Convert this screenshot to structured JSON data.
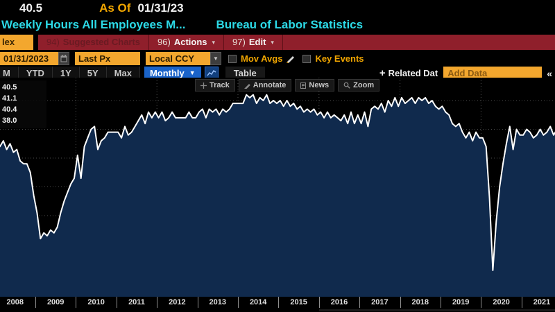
{
  "header": {
    "last_price": "40.5",
    "as_of_label": "As Of",
    "as_of_date": "01/31/23",
    "title": "Weekly Hours All Employees M...",
    "source": "Bureau of Labor Statistics"
  },
  "menubar": {
    "ticker_tab": "lex",
    "items": [
      {
        "num": "94)",
        "label": "Suggested Charts",
        "arrow": ""
      },
      {
        "num": "96)",
        "label": "Actions",
        "arrow": "▾"
      },
      {
        "num": "97)",
        "label": "Edit",
        "arrow": "▾"
      }
    ]
  },
  "toolbar": {
    "date_value": "01/31/2023",
    "price_field": "Last Px",
    "currency_field": "Local CCY",
    "dropdown_glyph": "▼",
    "mov_avgs_label": "Mov Avgs",
    "key_events_label": "Key Events",
    "ranges": [
      "M",
      "YTD",
      "1Y",
      "5Y",
      "Max"
    ],
    "period_selected": "Monthly",
    "period_arrow": "▼",
    "table_label": "Table",
    "related_plus": "+",
    "related_data_label": "Related Dat",
    "add_data_placeholder": "Add Data",
    "collapse_glyph": "«"
  },
  "chart_toolbar": {
    "track": "Track",
    "annotate": "Annotate",
    "news": "News",
    "zoom": "Zoom"
  },
  "markers": {
    "last": "40.5",
    "high": "41.1",
    "average": "40.4",
    "low": "38.0"
  },
  "chart_data": {
    "type": "area",
    "title": "Weekly Hours All Employees Manufacturing",
    "source": "Bureau of Labor Statistics",
    "frequency": "monthly",
    "start": "2008-01",
    "unit": "hours",
    "ylim": [
      37.6,
      41.4
    ],
    "y_gridlines": [
      41.0,
      40.5,
      40.0,
      39.5,
      39.0,
      38.5,
      38.0
    ],
    "x_year_labels": [
      2008,
      2009,
      2010,
      2011,
      2012,
      2013,
      2014,
      2015,
      2016,
      2017,
      2018,
      2019,
      2020,
      2021
    ],
    "x_gridline_years": [
      2010,
      2012,
      2014,
      2016,
      2018,
      2020
    ],
    "stats": {
      "last": 40.5,
      "high": 41.1,
      "average": 40.4,
      "low": 38.0
    },
    "line_color": "#ffffff",
    "fill_color": "#102a4d",
    "grid_color": "#4d4d4d",
    "values": [
      40.25,
      40.2,
      40.3,
      40.15,
      40.25,
      40.1,
      40.15,
      39.95,
      39.9,
      39.9,
      39.75,
      39.35,
      39.05,
      38.6,
      38.7,
      38.65,
      38.75,
      38.7,
      38.8,
      39.05,
      39.25,
      39.4,
      39.55,
      39.65,
      40.05,
      39.65,
      40.2,
      40.35,
      40.5,
      40.55,
      40.15,
      40.3,
      40.35,
      40.45,
      40.45,
      40.45,
      40.45,
      40.35,
      40.55,
      40.4,
      40.45,
      40.55,
      40.65,
      40.75,
      40.6,
      40.8,
      40.7,
      40.8,
      40.7,
      40.8,
      40.65,
      40.7,
      40.8,
      40.7,
      40.7,
      40.7,
      40.7,
      40.8,
      40.7,
      40.7,
      40.8,
      40.85,
      40.7,
      40.85,
      40.8,
      40.85,
      40.75,
      40.85,
      40.8,
      40.85,
      40.95,
      40.95,
      40.95,
      40.95,
      41.1,
      41.05,
      41.1,
      40.95,
      41.05,
      41.0,
      41.1,
      40.95,
      41.0,
      40.95,
      41.0,
      40.9,
      41.0,
      40.9,
      40.95,
      40.85,
      40.9,
      40.8,
      40.85,
      40.8,
      40.85,
      40.75,
      40.8,
      40.7,
      40.8,
      40.7,
      40.75,
      40.7,
      40.65,
      40.75,
      40.6,
      40.8,
      40.6,
      40.75,
      40.6,
      40.8,
      40.55,
      40.85,
      40.9,
      40.85,
      40.95,
      40.8,
      41.0,
      40.9,
      41.05,
      40.9,
      41.05,
      40.95,
      41.0,
      41.05,
      40.95,
      41.05,
      41.0,
      41.05,
      40.95,
      41.0,
      40.9,
      40.85,
      40.9,
      40.8,
      40.75,
      40.6,
      40.55,
      40.6,
      40.45,
      40.35,
      40.45,
      40.3,
      40.45,
      40.35,
      40.35,
      40.2,
      39.3,
      38.05,
      38.9,
      39.5,
      39.9,
      40.25,
      40.55,
      40.15,
      40.5,
      40.4,
      40.4,
      40.5,
      40.45,
      40.35,
      40.4,
      40.5,
      40.4,
      40.45,
      40.55,
      40.4,
      40.5,
      40.45
    ]
  }
}
